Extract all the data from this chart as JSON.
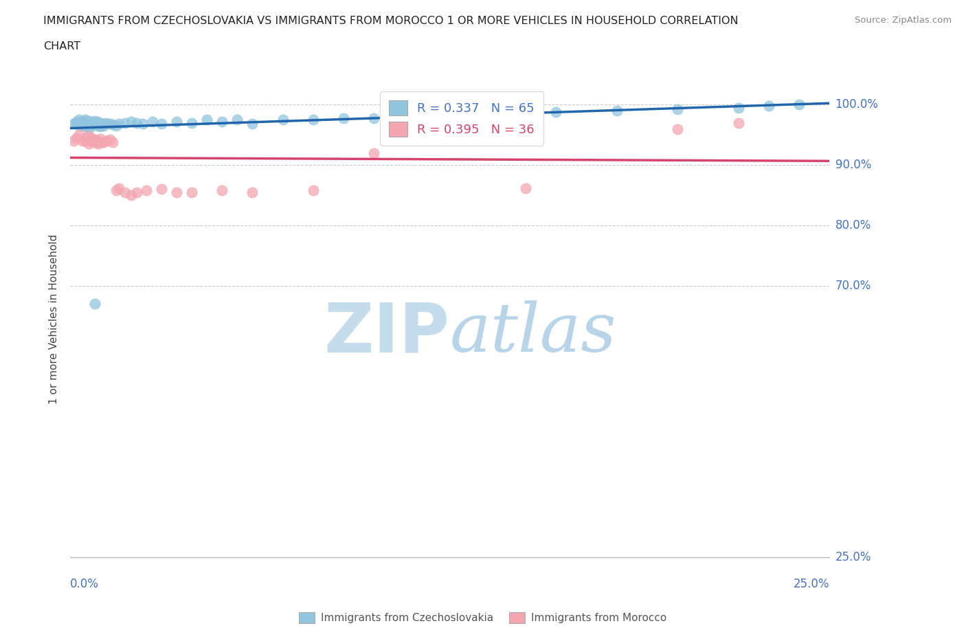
{
  "title_line1": "IMMIGRANTS FROM CZECHOSLOVAKIA VS IMMIGRANTS FROM MOROCCO 1 OR MORE VEHICLES IN HOUSEHOLD CORRELATION",
  "title_line2": "CHART",
  "source": "Source: ZipAtlas.com",
  "ylabel": "1 or more Vehicles in Household",
  "y_ticks_labels": [
    "100.0%",
    "90.0%",
    "80.0%",
    "70.0%",
    "25.0%"
  ],
  "y_ticks_vals": [
    1.0,
    0.9,
    0.8,
    0.7,
    0.25
  ],
  "x_range": [
    0.0,
    0.25
  ],
  "y_range": [
    0.25,
    1.04
  ],
  "legend_czech": "Immigrants from Czechoslovakia",
  "legend_morocco": "Immigrants from Morocco",
  "R_czech": 0.337,
  "N_czech": 65,
  "R_morocco": 0.395,
  "N_morocco": 36,
  "color_czech": "#92c5de",
  "color_morocco": "#f4a6b0",
  "color_trendline_czech": "#2166ac",
  "color_trendline_morocco": "#d6436e",
  "watermark_zip_color": "#c8dff0",
  "watermark_atlas_color": "#b8d0e8",
  "czech_x": [
    0.001,
    0.002,
    0.002,
    0.003,
    0.003,
    0.003,
    0.004,
    0.004,
    0.004,
    0.004,
    0.005,
    0.005,
    0.005,
    0.005,
    0.005,
    0.006,
    0.006,
    0.006,
    0.006,
    0.007,
    0.007,
    0.007,
    0.008,
    0.008,
    0.008,
    0.009,
    0.009,
    0.009,
    0.01,
    0.01,
    0.01,
    0.011,
    0.011,
    0.012,
    0.013,
    0.014,
    0.015,
    0.016,
    0.018,
    0.02,
    0.022,
    0.024,
    0.027,
    0.03,
    0.035,
    0.04,
    0.045,
    0.05,
    0.055,
    0.06,
    0.07,
    0.08,
    0.09,
    0.1,
    0.11,
    0.12,
    0.14,
    0.16,
    0.18,
    0.2,
    0.22,
    0.23,
    0.24,
    0.008,
    0.006
  ],
  "czech_y": [
    0.968,
    0.972,
    0.968,
    0.975,
    0.97,
    0.965,
    0.97,
    0.968,
    0.973,
    0.965,
    0.975,
    0.97,
    0.968,
    0.972,
    0.965,
    0.973,
    0.968,
    0.97,
    0.965,
    0.972,
    0.968,
    0.965,
    0.973,
    0.97,
    0.967,
    0.972,
    0.968,
    0.965,
    0.97,
    0.967,
    0.964,
    0.968,
    0.965,
    0.97,
    0.968,
    0.967,
    0.965,
    0.968,
    0.97,
    0.972,
    0.97,
    0.968,
    0.972,
    0.968,
    0.972,
    0.97,
    0.975,
    0.972,
    0.975,
    0.968,
    0.975,
    0.975,
    0.978,
    0.978,
    0.98,
    0.982,
    0.985,
    0.988,
    0.99,
    0.993,
    0.995,
    0.998,
    1.0,
    0.67,
    0.96
  ],
  "morocco_x": [
    0.001,
    0.002,
    0.003,
    0.004,
    0.005,
    0.005,
    0.006,
    0.006,
    0.007,
    0.007,
    0.008,
    0.008,
    0.009,
    0.009,
    0.01,
    0.01,
    0.011,
    0.012,
    0.013,
    0.014,
    0.015,
    0.016,
    0.018,
    0.02,
    0.022,
    0.025,
    0.03,
    0.035,
    0.04,
    0.05,
    0.06,
    0.08,
    0.1,
    0.15,
    0.2,
    0.22
  ],
  "morocco_y": [
    0.94,
    0.945,
    0.95,
    0.94,
    0.945,
    0.94,
    0.948,
    0.935,
    0.94,
    0.945,
    0.938,
    0.942,
    0.935,
    0.94,
    0.937,
    0.943,
    0.938,
    0.94,
    0.942,
    0.938,
    0.858,
    0.862,
    0.855,
    0.85,
    0.855,
    0.858,
    0.86,
    0.855,
    0.855,
    0.858,
    0.855,
    0.858,
    0.92,
    0.862,
    0.96,
    0.97
  ]
}
